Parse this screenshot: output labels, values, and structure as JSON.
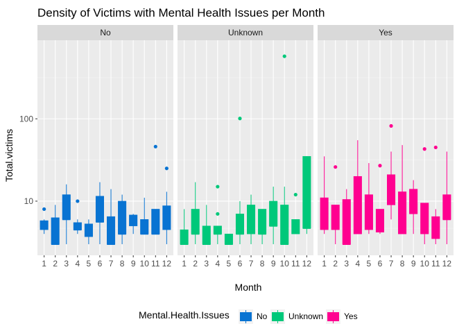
{
  "chart_data": {
    "type": "boxplot",
    "title": "Density of Victims with Mental Health Issues per Month",
    "xlabel": "Month",
    "ylabel": "Total.victims",
    "y_scale": "log10",
    "ylim": [
      2.2,
      900
    ],
    "y_ticks": [
      10,
      100
    ],
    "y_tick_labels": [
      "10",
      "100"
    ],
    "categories": [
      "1",
      "2",
      "3",
      "4",
      "5",
      "6",
      "7",
      "8",
      "9",
      "10",
      "11",
      "12"
    ],
    "grid": true,
    "legend": {
      "title": "Mental.Health.Issues",
      "position": "bottom",
      "entries": [
        "No",
        "Unknown",
        "Yes"
      ]
    },
    "series": [
      {
        "name": "No",
        "color": "#0873d2",
        "boxes": [
          {
            "month": "1",
            "lower": 4,
            "q1": 4.5,
            "median": 5,
            "q3": 5.8,
            "upper": 6,
            "outliers": [
              8
            ]
          },
          {
            "month": "2",
            "lower": 3,
            "q1": 3,
            "median": 3,
            "q3": 6.3,
            "upper": 9,
            "outliers": []
          },
          {
            "month": "3",
            "lower": 3,
            "q1": 6,
            "median": 6,
            "q3": 12,
            "upper": 16,
            "outliers": []
          },
          {
            "month": "4",
            "lower": 4,
            "q1": 4.5,
            "median": 4.5,
            "q3": 5.5,
            "upper": 6,
            "outliers": [
              10
            ]
          },
          {
            "month": "5",
            "lower": 3,
            "q1": 3.7,
            "median": 4,
            "q3": 5.3,
            "upper": 6,
            "outliers": []
          },
          {
            "month": "6",
            "lower": 3,
            "q1": 5.6,
            "median": 5.6,
            "q3": 11.5,
            "upper": 17,
            "outliers": []
          },
          {
            "month": "7",
            "lower": 3,
            "q1": 3,
            "median": 3,
            "q3": 6.5,
            "upper": 14,
            "outliers": []
          },
          {
            "month": "8",
            "lower": 3,
            "q1": 4,
            "median": 4,
            "q3": 10,
            "upper": 12,
            "outliers": []
          },
          {
            "month": "9",
            "lower": 4,
            "q1": 5,
            "median": 6,
            "q3": 6.8,
            "upper": 7,
            "outliers": []
          },
          {
            "month": "10",
            "lower": 4,
            "q1": 4,
            "median": 4,
            "q3": 6,
            "upper": 11,
            "outliers": []
          },
          {
            "month": "11",
            "lower": 4,
            "q1": 4,
            "median": 4,
            "q3": 8,
            "upper": 8,
            "outliers": [
              46
            ]
          },
          {
            "month": "12",
            "lower": 3,
            "q1": 4.5,
            "median": 7,
            "q3": 8.8,
            "upper": 13,
            "outliers": [
              25
            ]
          }
        ]
      },
      {
        "name": "Unknown",
        "color": "#00c87a",
        "boxes": [
          {
            "month": "1",
            "lower": 3,
            "q1": 3,
            "median": 3,
            "q3": 4.5,
            "upper": 8,
            "outliers": []
          },
          {
            "month": "2",
            "lower": 3,
            "q1": 4,
            "median": 4,
            "q3": 8,
            "upper": 17,
            "outliers": []
          },
          {
            "month": "3",
            "lower": 3,
            "q1": 3,
            "median": 3,
            "q3": 5,
            "upper": 9,
            "outliers": []
          },
          {
            "month": "4",
            "lower": 3,
            "q1": 4,
            "median": 4,
            "q3": 5,
            "upper": 5,
            "outliers": [
              15,
              7
            ]
          },
          {
            "month": "5",
            "lower": 3,
            "q1": 3,
            "median": 3,
            "q3": 4,
            "upper": 4,
            "outliers": []
          },
          {
            "month": "6",
            "lower": 3,
            "q1": 4,
            "median": 4,
            "q3": 7,
            "upper": 10,
            "outliers": [
              101
            ]
          },
          {
            "month": "7",
            "lower": 3,
            "q1": 4,
            "median": 6,
            "q3": 9,
            "upper": 12,
            "outliers": []
          },
          {
            "month": "8",
            "lower": 3,
            "q1": 4,
            "median": 4,
            "q3": 8,
            "upper": 8,
            "outliers": []
          },
          {
            "month": "9",
            "lower": 3,
            "q1": 5,
            "median": 5,
            "q3": 10,
            "upper": 15,
            "outliers": []
          },
          {
            "month": "10",
            "lower": 3,
            "q1": 3,
            "median": 3,
            "q3": 9,
            "upper": 15,
            "outliers": [
              575
            ]
          },
          {
            "month": "11",
            "lower": 4,
            "q1": 4,
            "median": 5.5,
            "q3": 6,
            "upper": 6,
            "outliers": [
              12
            ]
          },
          {
            "month": "12",
            "lower": 4,
            "q1": 4.7,
            "median": 4.7,
            "q3": 35,
            "upper": 35,
            "outliers": []
          }
        ]
      },
      {
        "name": "Yes",
        "color": "#ff0090",
        "boxes": [
          {
            "month": "1",
            "lower": 4,
            "q1": 4.5,
            "median": 7,
            "q3": 11,
            "upper": 35,
            "outliers": []
          },
          {
            "month": "2",
            "lower": 3,
            "q1": 4.5,
            "median": 6,
            "q3": 9,
            "upper": 9,
            "outliers": [
              26
            ]
          },
          {
            "month": "3",
            "lower": 3,
            "q1": 3,
            "median": 3,
            "q3": 10.5,
            "upper": 14,
            "outliers": []
          },
          {
            "month": "4",
            "lower": 4,
            "q1": 4,
            "median": 8,
            "q3": 20,
            "upper": 55,
            "outliers": []
          },
          {
            "month": "5",
            "lower": 4,
            "q1": 4.5,
            "median": 5,
            "q3": 12,
            "upper": 29,
            "outliers": []
          },
          {
            "month": "6",
            "lower": 4,
            "q1": 4.2,
            "median": 5.5,
            "q3": 8,
            "upper": 8,
            "outliers": [
              27
            ]
          },
          {
            "month": "7",
            "lower": 6,
            "q1": 9,
            "median": 14,
            "q3": 21,
            "upper": 40,
            "outliers": [
              82
            ]
          },
          {
            "month": "8",
            "lower": 4,
            "q1": 4,
            "median": 7,
            "q3": 13,
            "upper": 48,
            "outliers": []
          },
          {
            "month": "9",
            "lower": 4,
            "q1": 7,
            "median": 9,
            "q3": 14,
            "upper": 18,
            "outliers": []
          },
          {
            "month": "10",
            "lower": 3,
            "q1": 4,
            "median": 5.5,
            "q3": 9.5,
            "upper": 9.5,
            "outliers": [
              43
            ]
          },
          {
            "month": "11",
            "lower": 3,
            "q1": 3.5,
            "median": 5,
            "q3": 6.5,
            "upper": 8,
            "outliers": [
              45
            ]
          },
          {
            "month": "12",
            "lower": 3,
            "q1": 6,
            "median": 6,
            "q3": 12,
            "upper": 40,
            "outliers": []
          }
        ]
      }
    ]
  }
}
